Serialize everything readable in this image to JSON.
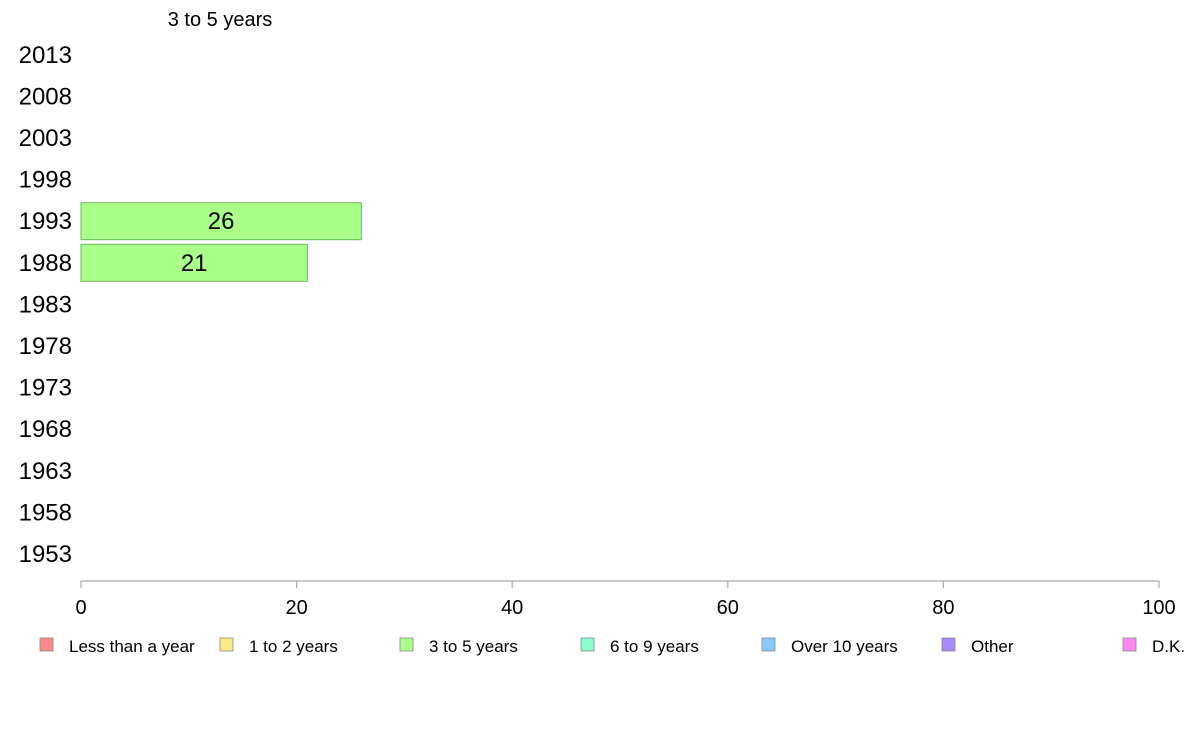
{
  "chart_data": {
    "type": "bar",
    "orientation": "horizontal",
    "title": "3 to 5 years",
    "categories": [
      "2013",
      "2008",
      "2003",
      "1998",
      "1993",
      "1988",
      "1983",
      "1978",
      "1973",
      "1968",
      "1963",
      "1958",
      "1953"
    ],
    "series": [
      {
        "name": "3 to 5 years",
        "color": "#aaff88",
        "values": [
          null,
          null,
          null,
          null,
          26,
          21,
          null,
          null,
          null,
          null,
          null,
          null,
          null
        ]
      }
    ],
    "xlim": [
      0,
      100
    ],
    "xticks": [
      "0",
      "20",
      "40",
      "60",
      "80",
      "100"
    ],
    "grid": false,
    "legend_position": "bottom",
    "legend": [
      {
        "label": "Less than a year",
        "color": "#ff8888"
      },
      {
        "label": "1 to 2 years",
        "color": "#ffe888"
      },
      {
        "label": "3 to 5 years",
        "color": "#aaff88"
      },
      {
        "label": "6 to 9 years",
        "color": "#88ffcc"
      },
      {
        "label": "Over 10 years",
        "color": "#88c8ff"
      },
      {
        "label": "Other",
        "color": "#aa88ff"
      },
      {
        "label": "D.K.",
        "color": "#ff88ee"
      }
    ]
  }
}
